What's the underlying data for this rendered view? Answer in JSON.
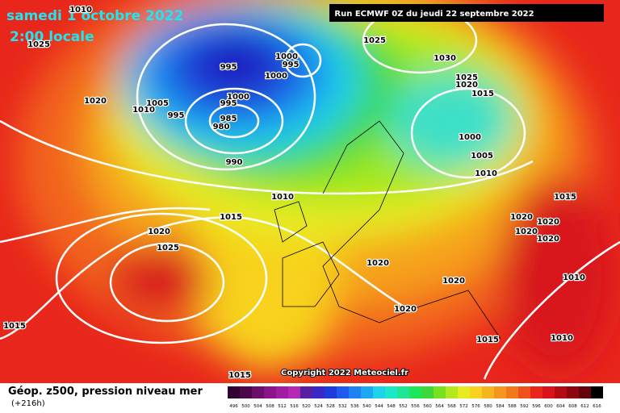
{
  "header": {
    "date": "samedi 1 octobre 2022",
    "time": "2:00 locale",
    "run": "Run ECMWF 0Z du jeudi 22 septembre 2022"
  },
  "map": {
    "copyright": "Copyright 2022 Meteociel.fr",
    "isobar_labels": [
      1010,
      1025,
      1020,
      1010,
      1005,
      995,
      995,
      1000,
      995,
      1000,
      1000,
      995,
      985,
      980,
      990,
      1025,
      1030,
      1025,
      1020,
      1015,
      1000,
      1005,
      1010,
      1010,
      1015,
      1020,
      1025,
      1015,
      1020,
      1020,
      1020,
      1020,
      1020,
      1020,
      1010,
      1020,
      1015,
      1015,
      1010,
      1015
    ]
  },
  "legend": {
    "title": "Géop. z500, pression niveau mer",
    "lead": "(+216h)",
    "scale": [
      496,
      500,
      504,
      508,
      512,
      516,
      520,
      524,
      528,
      532,
      536,
      540,
      544,
      548,
      552,
      556,
      560,
      564,
      568,
      572,
      576,
      580,
      584,
      588,
      592,
      596,
      600,
      604,
      608,
      612,
      616
    ]
  }
}
